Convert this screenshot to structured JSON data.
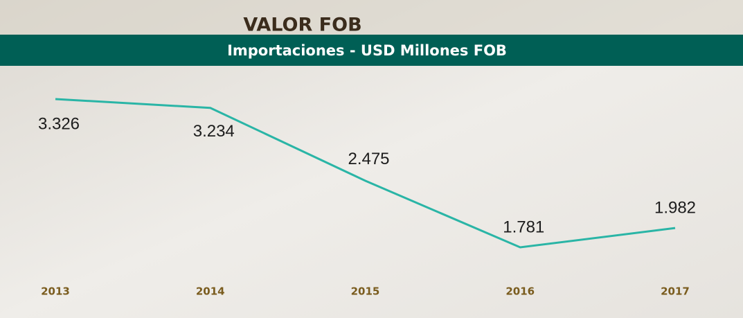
{
  "chart_data": {
    "type": "line",
    "title": "VALOR FOB",
    "subtitle": "Importaciones - USD Millones FOB",
    "categories": [
      "2013",
      "2014",
      "2015",
      "2016",
      "2017"
    ],
    "values": [
      3326,
      3234,
      2475,
      1781,
      1982
    ],
    "value_labels": [
      "3.326",
      "3.234",
      "2.475",
      "1.781",
      "1.982"
    ],
    "color": "#2ab5a6"
  }
}
